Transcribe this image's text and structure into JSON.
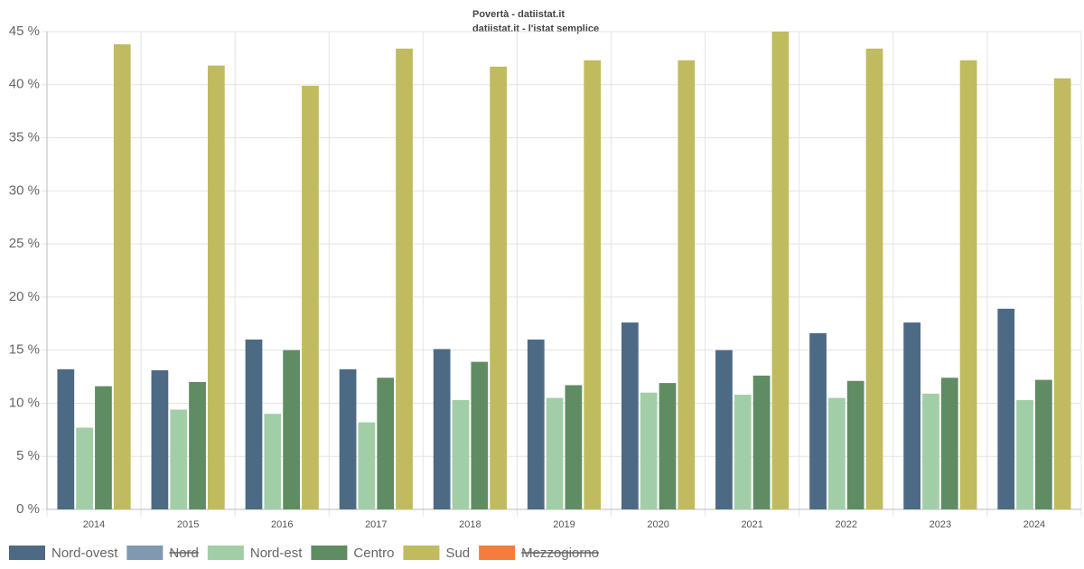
{
  "chart_data": {
    "type": "bar",
    "title": "Povertà - datiistat.it",
    "subtitle": "datiistat.it - l'istat semplice",
    "categories": [
      "2014",
      "2015",
      "2016",
      "2017",
      "2018",
      "2019",
      "2020",
      "2021",
      "2022",
      "2023",
      "2024"
    ],
    "series": [
      {
        "name": "Nord-ovest",
        "color": "#4d6a85",
        "values": [
          13.2,
          13.1,
          16.0,
          13.2,
          15.1,
          16.0,
          17.6,
          15.0,
          16.6,
          17.6,
          18.9
        ]
      },
      {
        "name": "Nord",
        "color": "#8099b0",
        "hidden": true
      },
      {
        "name": "Nord-est",
        "color": "#a2cea7",
        "values": [
          7.7,
          9.4,
          9.0,
          8.2,
          10.3,
          10.5,
          11.0,
          10.8,
          10.5,
          10.9,
          10.3
        ]
      },
      {
        "name": "Centro",
        "color": "#5f8c63",
        "values": [
          11.6,
          12.0,
          15.0,
          12.4,
          13.9,
          11.7,
          11.9,
          12.6,
          12.1,
          12.4,
          12.2
        ]
      },
      {
        "name": "Sud",
        "color": "#c0bb5e",
        "values": [
          43.8,
          41.8,
          39.9,
          43.4,
          41.7,
          42.3,
          42.3,
          45.0,
          43.4,
          42.3,
          40.6
        ]
      },
      {
        "name": "Mezzogiorno",
        "color": "#f47c3e",
        "hidden": true
      }
    ],
    "ylim": [
      0,
      45
    ],
    "yticks": [
      {
        "value": 0,
        "label": "0 %"
      },
      {
        "value": 5,
        "label": "5 %"
      },
      {
        "value": 10,
        "label": "10 %"
      },
      {
        "value": 15,
        "label": "15 %"
      },
      {
        "value": 20,
        "label": "20 %"
      },
      {
        "value": 25,
        "label": "25 %"
      },
      {
        "value": 30,
        "label": "30 %"
      },
      {
        "value": 35,
        "label": "35 %"
      },
      {
        "value": 40,
        "label": "40 %"
      },
      {
        "value": 45,
        "label": "45 %"
      }
    ],
    "grid": true,
    "legend": "bottom-left"
  }
}
